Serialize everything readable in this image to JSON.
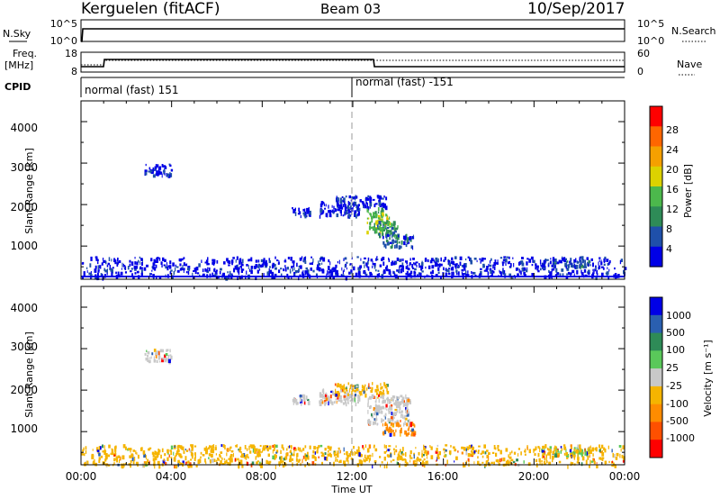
{
  "header": {
    "station": "Kerguelen (fitACF)",
    "beam": "Beam 03",
    "date": "10/Sep/2017"
  },
  "status_panels": {
    "nsky_label": "N.Sky",
    "nsky_ticks": [
      "10^5",
      "10^0"
    ],
    "nsearch_label": "N.Search",
    "nsearch_ticks": [
      "10^5",
      "10^0"
    ],
    "freq_label_1": "Freq.",
    "freq_label_2": "[MHz]",
    "freq_ticks": [
      "18",
      "8"
    ],
    "nave_label": "Nave",
    "nave_ticks": [
      "60",
      "0"
    ],
    "cpid_label": "CPID",
    "cpid_modes": [
      {
        "label": "normal (fast) 151",
        "start_hour": 0
      },
      {
        "label": "normal (fast) -151",
        "start_hour": 12
      }
    ]
  },
  "chart_data": [
    {
      "type": "heatmap",
      "name": "power",
      "ylabel": "Slant Range [km]",
      "y_ticks": [
        "1000",
        "2000",
        "3000",
        "4000"
      ],
      "ylim": [
        200,
        4500
      ],
      "xlim": [
        0,
        24
      ],
      "colorbar_label": "Power [dB]",
      "colorbar_ticks": [
        "4",
        "8",
        "12",
        "16",
        "20",
        "24",
        "28"
      ],
      "colorbar_range": [
        0,
        32
      ],
      "colorbar_colors": [
        "#0000e6",
        "#1f50aa",
        "#2e8b57",
        "#4cb84c",
        "#dcd200",
        "#f5a000",
        "#ff6600",
        "#ff0000"
      ],
      "clusters": [
        {
          "t_start": 2.8,
          "t_end": 4.0,
          "r_start": 2700,
          "r_end": 3000,
          "level": 1
        },
        {
          "t_start": 9.3,
          "t_end": 10.1,
          "r_start": 1700,
          "r_end": 1900,
          "level": 1
        },
        {
          "t_start": 10.5,
          "t_end": 12.3,
          "r_start": 1700,
          "r_end": 2050,
          "level": 1
        },
        {
          "t_start": 11.2,
          "t_end": 13.5,
          "r_start": 1900,
          "r_end": 2200,
          "level": 1
        },
        {
          "t_start": 12.6,
          "t_end": 13.3,
          "r_start": 1300,
          "r_end": 1900,
          "level": 4
        },
        {
          "t_start": 12.9,
          "t_end": 13.6,
          "r_start": 1500,
          "r_end": 1750,
          "level": 5
        },
        {
          "t_start": 13.0,
          "t_end": 14.0,
          "r_start": 1200,
          "r_end": 1600,
          "level": 3
        },
        {
          "t_start": 13.3,
          "t_end": 14.7,
          "r_start": 950,
          "r_end": 1250,
          "level": 2
        },
        {
          "t_start": 20.3,
          "t_end": 22.4,
          "r_start": 450,
          "r_end": 650,
          "level": 2
        },
        {
          "t_start": 0.0,
          "t_end": 24.0,
          "r_start": 200,
          "r_end": 700,
          "level": 1
        }
      ]
    },
    {
      "type": "heatmap",
      "name": "velocity",
      "ylabel": "Slant Range [km]",
      "y_ticks": [
        "1000",
        "2000",
        "3000",
        "4000"
      ],
      "ylim": [
        200,
        4500
      ],
      "xlim": [
        0,
        24
      ],
      "x_ticks": [
        "00:00",
        "04:00",
        "08:00",
        "12:00",
        "16:00",
        "20:00",
        "00:00"
      ],
      "xlabel": "Time UT",
      "colorbar_label": "Velocity [m s⁻¹]",
      "colorbar_ticks": [
        "1000",
        "500",
        "100",
        "25",
        "-25",
        "-100",
        "-500",
        "-1000"
      ],
      "colorbar_colors": [
        "#0000e6",
        "#2a5fb0",
        "#2e8b57",
        "#5ac85a",
        "#c8c8c8",
        "#f5b400",
        "#ff8c00",
        "#ff5000",
        "#ff0000"
      ],
      "clusters": [
        {
          "t_start": 2.8,
          "t_end": 4.0,
          "r_start": 2700,
          "r_end": 3000,
          "color": "#c8c8c8"
        },
        {
          "t_start": 9.3,
          "t_end": 10.1,
          "r_start": 1700,
          "r_end": 1900,
          "color": "#c8c8c8"
        },
        {
          "t_start": 10.5,
          "t_end": 12.3,
          "r_start": 1700,
          "r_end": 2050,
          "color": "#c8c8c8"
        },
        {
          "t_start": 11.2,
          "t_end": 13.5,
          "r_start": 1900,
          "r_end": 2200,
          "color": "#f5b400"
        },
        {
          "t_start": 12.6,
          "t_end": 14.5,
          "r_start": 1200,
          "r_end": 1900,
          "color": "#c8c8c8"
        },
        {
          "t_start": 13.3,
          "t_end": 14.7,
          "r_start": 950,
          "r_end": 1250,
          "color": "#ff8c00"
        },
        {
          "t_start": 20.3,
          "t_end": 22.4,
          "r_start": 450,
          "r_end": 650,
          "color": "#5ac85a"
        },
        {
          "t_start": 0.0,
          "t_end": 24.0,
          "r_start": 200,
          "r_end": 700,
          "color": "#f5b400"
        }
      ]
    }
  ]
}
